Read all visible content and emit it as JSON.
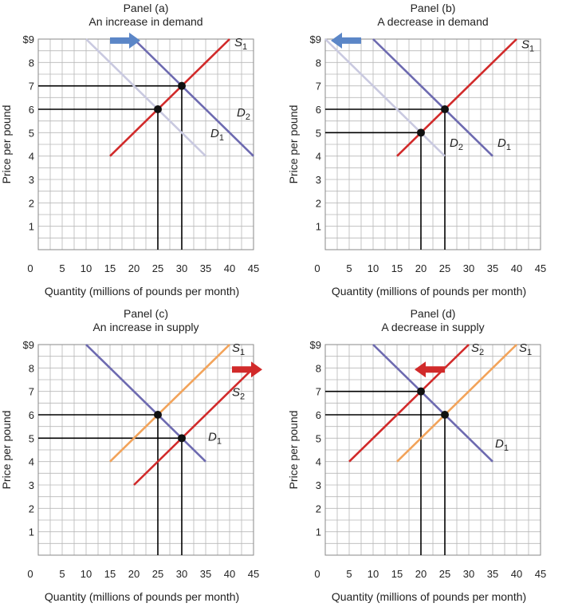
{
  "chart_data": [
    {
      "type": "line",
      "title": "Panel (a)",
      "subtitle": "An increase in demand",
      "xlabel": "Quantity (millions of pounds per month)",
      "ylabel": "Price per pound",
      "xlim": [
        0,
        45
      ],
      "ylim": [
        0,
        9
      ],
      "xticks": [
        "0",
        "5",
        "10",
        "15",
        "20",
        "25",
        "30",
        "35",
        "40",
        "45"
      ],
      "yticks": [
        "1",
        "2",
        "3",
        "4",
        "5",
        "6",
        "7",
        "8",
        "$9"
      ],
      "grid": true,
      "arrow": {
        "direction": "right",
        "color": "#5b86c7",
        "x": 15,
        "y": 8.9
      },
      "series": [
        {
          "name": "D1",
          "sub": "1",
          "color": "#c9c9e0",
          "x": [
            10,
            35
          ],
          "y": [
            9,
            4
          ]
        },
        {
          "name": "D2",
          "sub": "2",
          "color": "#6d6ab0",
          "x": [
            20,
            45
          ],
          "y": [
            9,
            4
          ]
        },
        {
          "name": "S1",
          "sub": "1",
          "color": "#d12a2a",
          "x": [
            15,
            40
          ],
          "y": [
            4,
            9
          ]
        }
      ],
      "line_labels": [
        {
          "text": "S",
          "sub": "1",
          "x": 41,
          "y": 8.7
        },
        {
          "text": "D",
          "sub": "2",
          "x": 41.5,
          "y": 5.7
        },
        {
          "text": "D",
          "sub": "1",
          "x": 36,
          "y": 4.8
        }
      ],
      "equilibria": [
        {
          "x": 25,
          "y": 6
        },
        {
          "x": 30,
          "y": 7
        }
      ]
    },
    {
      "type": "line",
      "title": "Panel (b)",
      "subtitle": "A decrease in demand",
      "xlabel": "Quantity (millions of pounds per month)",
      "ylabel": "Price per pound",
      "xlim": [
        0,
        45
      ],
      "ylim": [
        0,
        9
      ],
      "xticks": [
        "0",
        "5",
        "10",
        "15",
        "20",
        "25",
        "30",
        "35",
        "40",
        "45"
      ],
      "yticks": [
        "1",
        "2",
        "3",
        "4",
        "5",
        "6",
        "7",
        "8",
        "$9"
      ],
      "grid": true,
      "arrow": {
        "direction": "left",
        "color": "#5b86c7",
        "x": 7.5,
        "y": 8.9
      },
      "series": [
        {
          "name": "D2",
          "sub": "2",
          "color": "#c9c9e0",
          "x": [
            0,
            25
          ],
          "y": [
            9,
            4
          ]
        },
        {
          "name": "D1",
          "sub": "1",
          "color": "#6d6ab0",
          "x": [
            10,
            35
          ],
          "y": [
            9,
            4
          ]
        },
        {
          "name": "S1",
          "sub": "1",
          "color": "#d12a2a",
          "x": [
            15,
            40
          ],
          "y": [
            4,
            9
          ]
        }
      ],
      "line_labels": [
        {
          "text": "S",
          "sub": "1",
          "x": 41,
          "y": 8.6
        },
        {
          "text": "D",
          "sub": "2",
          "x": 26,
          "y": 4.4
        },
        {
          "text": "D",
          "sub": "1",
          "x": 36,
          "y": 4.4
        }
      ],
      "equilibria": [
        {
          "x": 20,
          "y": 5
        },
        {
          "x": 25,
          "y": 6
        }
      ]
    },
    {
      "type": "line",
      "title": "Panel (c)",
      "subtitle": "An increase in supply",
      "xlabel": "Quantity (millions of pounds per month)",
      "ylabel": "Price per pound",
      "xlim": [
        0,
        45
      ],
      "ylim": [
        0,
        9
      ],
      "xticks": [
        "0",
        "5",
        "10",
        "15",
        "20",
        "25",
        "30",
        "35",
        "40",
        "45"
      ],
      "yticks": [
        "1",
        "2",
        "3",
        "4",
        "5",
        "6",
        "7",
        "8",
        "$9"
      ],
      "grid": true,
      "arrow": {
        "direction": "right",
        "color": "#d12a2a",
        "x": 40.5,
        "y": 7.9
      },
      "series": [
        {
          "name": "D1",
          "sub": "1",
          "color": "#6d6ab0",
          "x": [
            10,
            35
          ],
          "y": [
            9,
            4
          ]
        },
        {
          "name": "S1",
          "sub": "1",
          "color": "#f2a35a",
          "x": [
            15,
            40
          ],
          "y": [
            4,
            9
          ]
        },
        {
          "name": "S2",
          "sub": "2",
          "color": "#d12a2a",
          "x": [
            20,
            45
          ],
          "y": [
            3,
            8
          ]
        }
      ],
      "line_labels": [
        {
          "text": "S",
          "sub": "1",
          "x": 40.5,
          "y": 8.7
        },
        {
          "text": "S",
          "sub": "2",
          "x": 40.5,
          "y": 6.8
        },
        {
          "text": "D",
          "sub": "1",
          "x": 35.5,
          "y": 4.9
        }
      ],
      "equilibria": [
        {
          "x": 25,
          "y": 6
        },
        {
          "x": 30,
          "y": 5
        }
      ]
    },
    {
      "type": "line",
      "title": "Panel (d)",
      "subtitle": "A decrease in supply",
      "xlabel": "Quantity (millions of pounds per month)",
      "ylabel": "Price per pound",
      "xlim": [
        0,
        45
      ],
      "ylim": [
        0,
        9
      ],
      "xticks": [
        "0",
        "5",
        "10",
        "15",
        "20",
        "25",
        "30",
        "35",
        "40",
        "45"
      ],
      "yticks": [
        "1",
        "2",
        "3",
        "4",
        "5",
        "6",
        "7",
        "8",
        "$9"
      ],
      "grid": true,
      "arrow": {
        "direction": "left",
        "color": "#d12a2a",
        "x": 25,
        "y": 7.9
      },
      "series": [
        {
          "name": "D1",
          "sub": "1",
          "color": "#6d6ab0",
          "x": [
            10,
            35
          ],
          "y": [
            9,
            4
          ]
        },
        {
          "name": "S1",
          "sub": "1",
          "color": "#f2a35a",
          "x": [
            15,
            40
          ],
          "y": [
            4,
            9
          ]
        },
        {
          "name": "S2",
          "sub": "2",
          "color": "#d12a2a",
          "x": [
            5,
            30
          ],
          "y": [
            4,
            9
          ]
        }
      ],
      "line_labels": [
        {
          "text": "S",
          "sub": "2",
          "x": 30.5,
          "y": 8.7
        },
        {
          "text": "S",
          "sub": "1",
          "x": 40.5,
          "y": 8.7
        },
        {
          "text": "D",
          "sub": "1",
          "x": 35.5,
          "y": 4.6
        }
      ],
      "equilibria": [
        {
          "x": 20,
          "y": 7
        },
        {
          "x": 25,
          "y": 6
        }
      ]
    }
  ]
}
